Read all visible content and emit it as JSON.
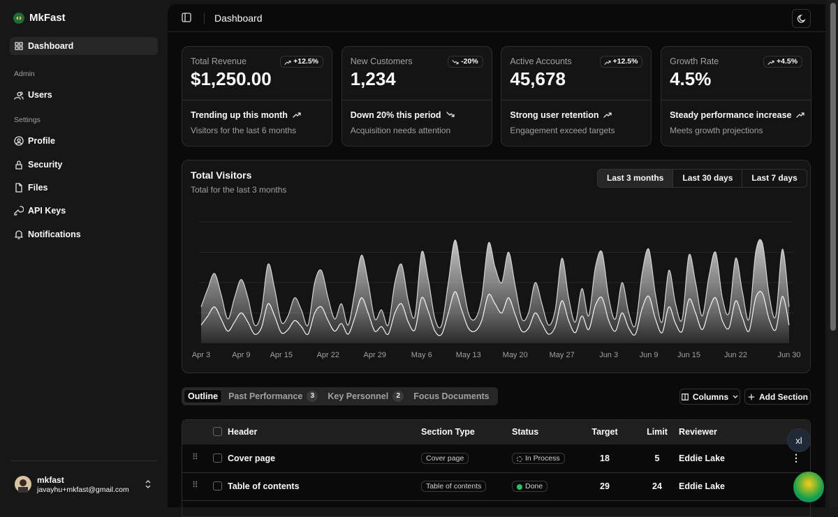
{
  "sidebar": {
    "brand": "MkFast",
    "main": [
      "Dashboard"
    ],
    "groups": [
      {
        "label": "Admin",
        "items": [
          "Users"
        ]
      },
      {
        "label": "Settings",
        "items": [
          "Profile",
          "Security",
          "Files",
          "API Keys",
          "Notifications"
        ]
      }
    ],
    "user": {
      "name": "mkfast",
      "email": "javayhu+mkfast@gmail.com"
    }
  },
  "header": {
    "title": "Dashboard"
  },
  "cards": [
    {
      "label": "Total Revenue",
      "value": "$1,250.00",
      "badge": "+12.5%",
      "trend": "up",
      "headline": "Trending up this month",
      "note": "Visitors for the last 6 months"
    },
    {
      "label": "New Customers",
      "value": "1,234",
      "badge": "-20%",
      "trend": "down",
      "headline": "Down 20% this period",
      "note": "Acquisition needs attention"
    },
    {
      "label": "Active Accounts",
      "value": "45,678",
      "badge": "+12.5%",
      "trend": "up",
      "headline": "Strong user retention",
      "note": "Engagement exceed targets"
    },
    {
      "label": "Growth Rate",
      "value": "4.5%",
      "badge": "+4.5%",
      "trend": "up",
      "headline": "Steady performance increase",
      "note": "Meets growth projections"
    }
  ],
  "chart_data": {
    "type": "area",
    "title": "Total Visitors",
    "subtitle": "Total for the last 3 months",
    "ranges": [
      "Last 3 months",
      "Last 30 days",
      "Last 7 days"
    ],
    "active_range": 0,
    "categories": [
      "Apr 3",
      null,
      null,
      null,
      null,
      null,
      "Apr 9",
      null,
      null,
      null,
      null,
      null,
      "Apr 15",
      null,
      null,
      null,
      null,
      null,
      null,
      "Apr 22",
      null,
      null,
      null,
      null,
      null,
      null,
      "Apr 29",
      null,
      null,
      null,
      null,
      null,
      null,
      "May 6",
      null,
      null,
      null,
      null,
      null,
      null,
      "May 13",
      null,
      null,
      null,
      null,
      null,
      null,
      "May 20",
      null,
      null,
      null,
      null,
      null,
      null,
      "May 27",
      null,
      null,
      null,
      null,
      null,
      null,
      "Jun 3",
      null,
      null,
      null,
      null,
      null,
      "Jun 9",
      null,
      null,
      null,
      null,
      null,
      "Jun 15",
      null,
      null,
      null,
      null,
      null,
      null,
      "Jun 22",
      null,
      null,
      null,
      null,
      null,
      null,
      null,
      "Jun 30"
    ],
    "series": [
      {
        "color": "#d4d4d4",
        "values": [
          120,
          180,
          230,
          160,
          80,
          150,
          210,
          150,
          60,
          100,
          260,
          180,
          70,
          90,
          150,
          110,
          60,
          200,
          240,
          150,
          80,
          130,
          60,
          170,
          290,
          200,
          80,
          110,
          60,
          200,
          260,
          140,
          90,
          300,
          210,
          80,
          60,
          200,
          340,
          220,
          100,
          80,
          150,
          330,
          250,
          200,
          300,
          190,
          80,
          100,
          200,
          130,
          60,
          110,
          280,
          150,
          70,
          180,
          90,
          250,
          300,
          150,
          80,
          200,
          100,
          60,
          230,
          310,
          160,
          70,
          240,
          130,
          80,
          290,
          200,
          90,
          220,
          300,
          150,
          100,
          280,
          170,
          80,
          300,
          330,
          160,
          90,
          310,
          120
        ]
      },
      {
        "color": "#f5f5f5",
        "values": [
          60,
          90,
          120,
          80,
          40,
          70,
          100,
          70,
          30,
          50,
          130,
          90,
          35,
          45,
          75,
          55,
          30,
          100,
          120,
          75,
          40,
          65,
          30,
          85,
          150,
          100,
          40,
          55,
          30,
          100,
          130,
          70,
          45,
          150,
          105,
          40,
          30,
          100,
          170,
          110,
          50,
          40,
          75,
          160,
          130,
          100,
          150,
          95,
          40,
          50,
          100,
          65,
          30,
          55,
          140,
          75,
          35,
          90,
          45,
          125,
          150,
          75,
          40,
          100,
          50,
          30,
          115,
          155,
          80,
          35,
          120,
          65,
          40,
          145,
          100,
          45,
          110,
          150,
          75,
          50,
          140,
          85,
          40,
          150,
          165,
          80,
          45,
          155,
          60
        ]
      }
    ],
    "ylim": [
      0,
      400
    ],
    "grid": true
  },
  "tabs": [
    {
      "label": "Outline"
    },
    {
      "label": "Past Performance",
      "count": 3
    },
    {
      "label": "Key Personnel",
      "count": 2
    },
    {
      "label": "Focus Documents"
    }
  ],
  "actions": [
    "Columns",
    "Add Section"
  ],
  "table": {
    "columns": [
      "Header",
      "Section Type",
      "Status",
      "Target",
      "Limit",
      "Reviewer"
    ],
    "rows": [
      [
        "Cover page",
        "Cover page",
        "In Process",
        18,
        5,
        "Eddie Lake"
      ],
      [
        "Table of contents",
        "Table of contents",
        "Done",
        29,
        24,
        "Eddie Lake"
      ]
    ]
  },
  "badge": "xl"
}
